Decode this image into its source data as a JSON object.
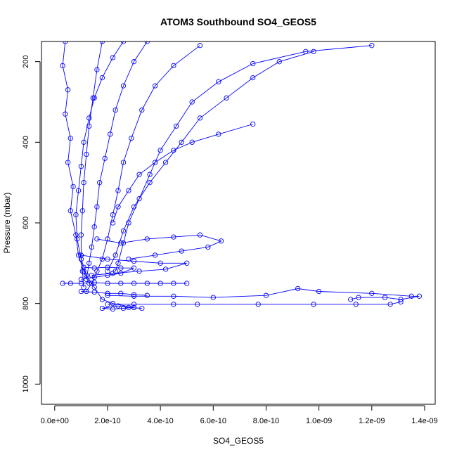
{
  "chart_data": {
    "type": "line",
    "title": "ATOM3 Southbound SO4_GEOS5",
    "xlabel": "SO4_GEOS5",
    "ylabel": "Pressure (mbar)",
    "xlim": [
      -5e-11,
      1.44e-09
    ],
    "ylim": [
      150,
      1050
    ],
    "y_reversed": true,
    "markers": "open-circle",
    "grid": false,
    "legend": "none",
    "xticks": [
      {
        "value": 0,
        "label": "0.0e+00"
      },
      {
        "value": 2e-10,
        "label": "2.0e-10"
      },
      {
        "value": 4e-10,
        "label": "4.0e-10"
      },
      {
        "value": 6e-10,
        "label": "6.0e-10"
      },
      {
        "value": 8e-10,
        "label": "8.0e-10"
      },
      {
        "value": 1e-09,
        "label": "1.0e-09"
      },
      {
        "value": 1.2e-09,
        "label": "1.2e-09"
      },
      {
        "value": 1.4e-09,
        "label": "1.4e-09"
      }
    ],
    "yticks": [
      {
        "value": 200,
        "label": "200"
      },
      {
        "value": 400,
        "label": "400"
      },
      {
        "value": 600,
        "label": "600"
      },
      {
        "value": 800,
        "label": "800"
      },
      {
        "value": 1000,
        "label": "1000"
      }
    ],
    "series": [
      {
        "values": [
          [
            2.6e-10,
            150
          ],
          [
            2.2e-10,
            190
          ],
          [
            1.8e-10,
            240
          ],
          [
            1.5e-10,
            290
          ],
          [
            1.3e-10,
            340
          ],
          [
            1.1e-10,
            400
          ],
          [
            1e-10,
            460
          ],
          [
            9e-11,
            520
          ],
          [
            8e-11,
            580
          ],
          [
            8.5e-11,
            640
          ],
          [
            1e-10,
            690
          ],
          [
            1.2e-10,
            730
          ],
          [
            1.5e-10,
            760
          ],
          [
            1.8e-10,
            790
          ],
          [
            2.2e-10,
            800
          ],
          [
            3e-10,
            810
          ]
        ]
      },
      {
        "values": [
          [
            5.5e-10,
            160
          ],
          [
            4.5e-10,
            210
          ],
          [
            3.8e-10,
            260
          ],
          [
            3.3e-10,
            320
          ],
          [
            2.9e-10,
            390
          ],
          [
            2.6e-10,
            450
          ],
          [
            2.4e-10,
            520
          ],
          [
            2.2e-10,
            580
          ],
          [
            2e-10,
            640
          ],
          [
            1.8e-10,
            690
          ],
          [
            1.6e-10,
            720
          ],
          [
            1.4e-10,
            750
          ],
          [
            1.2e-10,
            770
          ]
        ]
      },
      {
        "values": [
          [
            1.2e-09,
            160
          ],
          [
            9.5e-10,
            175
          ],
          [
            7.5e-10,
            205
          ],
          [
            6.2e-10,
            250
          ],
          [
            5.2e-10,
            300
          ],
          [
            4.6e-10,
            360
          ],
          [
            4e-10,
            420
          ],
          [
            3.6e-10,
            480
          ],
          [
            3.2e-10,
            540
          ],
          [
            2.8e-10,
            600
          ],
          [
            2.6e-10,
            650
          ],
          [
            2.4e-10,
            700
          ],
          [
            2.3e-10,
            720
          ]
        ]
      },
      {
        "values": [
          [
            4e-11,
            150
          ],
          [
            3e-11,
            210
          ],
          [
            5e-11,
            270
          ],
          [
            4e-11,
            330
          ],
          [
            6e-11,
            390
          ],
          [
            5e-11,
            450
          ],
          [
            7e-11,
            510
          ],
          [
            6e-11,
            570
          ],
          [
            8e-11,
            630
          ],
          [
            9e-11,
            680
          ],
          [
            1.1e-10,
            720
          ],
          [
            1.3e-10,
            750
          ]
        ]
      },
      {
        "values": [
          [
            3.5e-10,
            150
          ],
          [
            3e-10,
            200
          ],
          [
            2.6e-10,
            260
          ],
          [
            2.3e-10,
            320
          ],
          [
            2.1e-10,
            380
          ],
          [
            1.9e-10,
            440
          ],
          [
            1.7e-10,
            500
          ],
          [
            1.6e-10,
            560
          ],
          [
            1.5e-10,
            610
          ],
          [
            1.4e-10,
            660
          ],
          [
            1.3e-10,
            700
          ],
          [
            1.2e-10,
            740
          ]
        ]
      },
      {
        "values": [
          [
            9.8e-10,
            175
          ],
          [
            8.5e-10,
            200
          ],
          [
            7.5e-10,
            240
          ],
          [
            6.5e-10,
            290
          ],
          [
            5.5e-10,
            340
          ],
          [
            4.8e-10,
            400
          ],
          [
            4.2e-10,
            450
          ],
          [
            3.6e-10,
            500
          ],
          [
            3e-10,
            560
          ],
          [
            2.6e-10,
            620
          ],
          [
            2.3e-10,
            680
          ],
          [
            2e-10,
            720
          ]
        ]
      },
      {
        "values": [
          [
            7.5e-10,
            355
          ],
          [
            6.2e-10,
            380
          ],
          [
            5.2e-10,
            400
          ],
          [
            4.5e-10,
            420
          ],
          [
            3.8e-10,
            450
          ],
          [
            3.2e-10,
            480
          ],
          [
            2.8e-10,
            520
          ],
          [
            2.4e-10,
            560
          ],
          [
            2.2e-10,
            600
          ]
        ]
      },
      {
        "values": [
          [
            1.8e-10,
            150
          ],
          [
            1.6e-10,
            220
          ],
          [
            1.45e-10,
            290
          ],
          [
            1.3e-10,
            360
          ],
          [
            1.2e-10,
            430
          ],
          [
            1.1e-10,
            500
          ],
          [
            1.05e-10,
            570
          ],
          [
            1e-10,
            630
          ],
          [
            1e-10,
            680
          ],
          [
            1.05e-10,
            720
          ],
          [
            1.1e-10,
            760
          ]
        ]
      },
      {
        "values": [
          [
            1.6e-10,
            640
          ],
          [
            2.5e-10,
            650
          ],
          [
            3.5e-10,
            640
          ],
          [
            4.5e-10,
            635
          ],
          [
            5.5e-10,
            630
          ],
          [
            6.3e-10,
            645
          ],
          [
            5.8e-10,
            660
          ],
          [
            4.8e-10,
            670
          ],
          [
            3.8e-10,
            680
          ],
          [
            2.8e-10,
            690
          ]
        ]
      },
      {
        "values": [
          [
            1e-10,
            680
          ],
          [
            2e-10,
            690
          ],
          [
            3e-10,
            695
          ],
          [
            4e-10,
            700
          ],
          [
            5e-10,
            700
          ],
          [
            4.2e-10,
            715
          ],
          [
            3.2e-10,
            720
          ],
          [
            2.2e-10,
            725
          ],
          [
            1.4e-10,
            730
          ]
        ]
      },
      {
        "values": [
          [
            3e-11,
            750
          ],
          [
            6e-11,
            750
          ],
          [
            1e-10,
            750
          ],
          [
            1.5e-10,
            748
          ],
          [
            2e-10,
            750
          ],
          [
            2.5e-10,
            750
          ],
          [
            3e-10,
            750
          ],
          [
            3.5e-10,
            750
          ],
          [
            4e-10,
            750
          ],
          [
            4.5e-10,
            750
          ],
          [
            5e-10,
            750
          ]
        ]
      },
      {
        "values": [
          [
            1.1e-10,
            710
          ],
          [
            1.5e-10,
            712
          ],
          [
            2e-10,
            710
          ],
          [
            2.5e-10,
            712
          ],
          [
            3e-10,
            712
          ],
          [
            2.5e-10,
            725
          ],
          [
            2e-10,
            730
          ],
          [
            1.5e-10,
            735
          ],
          [
            1e-10,
            740
          ]
        ]
      },
      {
        "values": [
          [
            2e-10,
            780
          ],
          [
            3e-10,
            782
          ],
          [
            4.5e-10,
            782
          ],
          [
            6e-10,
            785
          ],
          [
            8e-10,
            780
          ],
          [
            9.2e-10,
            763
          ],
          [
            1e-09,
            770
          ],
          [
            1.2e-09,
            775
          ],
          [
            1.35e-09,
            782
          ],
          [
            1.38e-09,
            782
          ],
          [
            1.31e-09,
            790
          ],
          [
            1.25e-09,
            785
          ],
          [
            1.15e-09,
            785
          ],
          [
            1.12e-09,
            790
          ]
        ]
      },
      {
        "values": [
          [
            2e-10,
            802
          ],
          [
            3e-10,
            802
          ],
          [
            4.5e-10,
            802
          ],
          [
            5.4e-10,
            802
          ],
          [
            7.7e-10,
            802
          ],
          [
            9.8e-10,
            802
          ],
          [
            1.14e-09,
            802
          ],
          [
            1.27e-09,
            802
          ],
          [
            1.31e-09,
            796
          ]
        ]
      },
      {
        "values": [
          [
            1e-10,
            770
          ],
          [
            1.5e-10,
            772
          ],
          [
            2e-10,
            775
          ],
          [
            2.5e-10,
            775
          ],
          [
            3e-10,
            778
          ],
          [
            3.5e-10,
            780
          ]
        ]
      },
      {
        "values": [
          [
            3e-10,
            810
          ],
          [
            2.6e-10,
            812
          ],
          [
            2.2e-10,
            814
          ],
          [
            1.8e-10,
            812
          ],
          [
            2.4e-10,
            806
          ],
          [
            2.8e-10,
            810
          ],
          [
            3.3e-10,
            812
          ]
        ]
      }
    ]
  }
}
